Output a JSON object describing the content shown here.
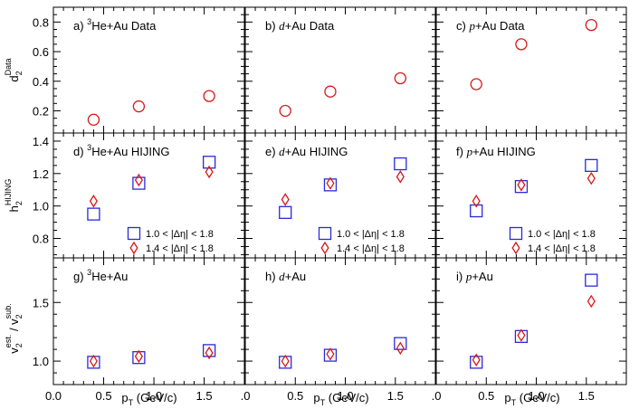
{
  "figure": {
    "xlabel_main": "p",
    "xlabel_sub": "T",
    "xlabel_unit": " (GeV/c)",
    "legend": {
      "blue_label": "1.0 < |Δη| < 1.8",
      "red_label": "1.4 < |Δη| < 1.8"
    },
    "xticks": {
      "first_panel": [
        "0.0",
        "0.5",
        "1.0",
        "1.5"
      ],
      "other_panels": [
        ".0",
        "0.5",
        "1.0",
        "1.5"
      ]
    },
    "rows": [
      {
        "ylabel_main": "d",
        "ylabel_sub": "2",
        "ylabel_sup": "Data",
        "yticks": [
          "0.2",
          "0.4",
          "0.6",
          "0.8"
        ]
      },
      {
        "ylabel_main": "h",
        "ylabel_sub": "2",
        "ylabel_sup": "HIJING",
        "yticks": [
          "0.8",
          "1.0",
          "1.2",
          "1.4"
        ]
      },
      {
        "ylabel_main": "v",
        "ylabel_sub": "2",
        "ylabel_sup": "est.",
        "ylabel_mid": " / v",
        "ylabel_sub2": "2",
        "ylabel_sup2": "sub.",
        "yticks": [
          "1.0",
          "1.5"
        ]
      }
    ]
  },
  "colors": {
    "blue": "#2a2ad8",
    "red": "#d81818"
  },
  "chart_data": [
    {
      "type": "scatter",
      "title": "a) 3He+Au Data",
      "label": {
        "letter": "a)",
        "sup": "3",
        "rest": "He+Au Data"
      },
      "xlim": [
        0,
        1.9
      ],
      "ylim": [
        0.05,
        0.9
      ],
      "series": [
        {
          "name": "Data",
          "marker": "circle",
          "color": "red",
          "x": [
            0.4,
            0.85,
            1.55
          ],
          "y": [
            0.14,
            0.23,
            0.3
          ]
        }
      ]
    },
    {
      "type": "scatter",
      "title": "b) d+Au Data",
      "label": {
        "letter": "b)",
        "ital": "d",
        "rest": "+Au Data"
      },
      "xlim": [
        0,
        1.9
      ],
      "ylim": [
        0.05,
        0.9
      ],
      "series": [
        {
          "name": "Data",
          "marker": "circle",
          "color": "red",
          "x": [
            0.4,
            0.85,
            1.55
          ],
          "y": [
            0.2,
            0.33,
            0.42
          ]
        }
      ]
    },
    {
      "type": "scatter",
      "title": "c) p+Au Data",
      "label": {
        "letter": "c)",
        "ital": "p",
        "rest": "+Au Data"
      },
      "xlim": [
        0,
        1.9
      ],
      "ylim": [
        0.05,
        0.9
      ],
      "series": [
        {
          "name": "Data",
          "marker": "circle",
          "color": "red",
          "x": [
            0.4,
            0.85,
            1.55
          ],
          "y": [
            0.38,
            0.65,
            0.78
          ]
        }
      ]
    },
    {
      "type": "scatter",
      "title": "d) 3He+Au HIJING",
      "label": {
        "letter": "d)",
        "sup": "3",
        "rest": "He+Au HIJING"
      },
      "xlim": [
        0,
        1.9
      ],
      "ylim": [
        0.68,
        1.45
      ],
      "legend": true,
      "series": [
        {
          "name": "1.0 < |Δη| < 1.8",
          "marker": "square",
          "color": "blue",
          "x": [
            0.4,
            0.85,
            1.55
          ],
          "y": [
            0.95,
            1.14,
            1.27
          ]
        },
        {
          "name": "1.4 < |Δη| < 1.8",
          "marker": "diamond",
          "color": "red",
          "x": [
            0.4,
            0.85,
            1.55
          ],
          "y": [
            1.03,
            1.16,
            1.21
          ]
        }
      ]
    },
    {
      "type": "scatter",
      "title": "e) d+Au HIJING",
      "label": {
        "letter": "e)",
        "ital": "d",
        "rest": "+Au HIJING"
      },
      "xlim": [
        0,
        1.9
      ],
      "ylim": [
        0.68,
        1.45
      ],
      "legend": true,
      "series": [
        {
          "name": "1.0 < |Δη| < 1.8",
          "marker": "square",
          "color": "blue",
          "x": [
            0.4,
            0.85,
            1.55
          ],
          "y": [
            0.96,
            1.13,
            1.26
          ]
        },
        {
          "name": "1.4 < |Δη| < 1.8",
          "marker": "diamond",
          "color": "red",
          "x": [
            0.4,
            0.85,
            1.55
          ],
          "y": [
            1.04,
            1.14,
            1.18
          ]
        }
      ]
    },
    {
      "type": "scatter",
      "title": "f) p+Au HIJING",
      "label": {
        "letter": "f)",
        "ital": "p",
        "rest": "+Au HIJING"
      },
      "xlim": [
        0,
        1.9
      ],
      "ylim": [
        0.68,
        1.45
      ],
      "legend": true,
      "series": [
        {
          "name": "1.0 < |Δη| < 1.8",
          "marker": "square",
          "color": "blue",
          "x": [
            0.4,
            0.85,
            1.55
          ],
          "y": [
            0.97,
            1.12,
            1.25
          ]
        },
        {
          "name": "1.4 < |Δη| < 1.8",
          "marker": "diamond",
          "color": "red",
          "x": [
            0.4,
            0.85,
            1.55
          ],
          "y": [
            1.03,
            1.13,
            1.17
          ]
        }
      ]
    },
    {
      "type": "scatter",
      "title": "g) 3He+Au",
      "label": {
        "letter": "g)",
        "sup": "3",
        "rest": "He+Au"
      },
      "xlim": [
        0,
        1.9
      ],
      "ylim": [
        0.8,
        1.88
      ],
      "series": [
        {
          "name": "1.0 < |Δη| < 1.8",
          "marker": "square",
          "color": "blue",
          "x": [
            0.4,
            0.85,
            1.55
          ],
          "y": [
            0.99,
            1.03,
            1.09
          ]
        },
        {
          "name": "1.4 < |Δη| < 1.8",
          "marker": "diamond",
          "color": "red",
          "x": [
            0.4,
            0.85,
            1.55
          ],
          "y": [
            1.0,
            1.04,
            1.07
          ]
        }
      ]
    },
    {
      "type": "scatter",
      "title": "h) d+Au",
      "label": {
        "letter": "h)",
        "ital": "d",
        "rest": "+Au"
      },
      "xlim": [
        0,
        1.9
      ],
      "ylim": [
        0.8,
        1.88
      ],
      "series": [
        {
          "name": "1.0 < |Δη| < 1.8",
          "marker": "square",
          "color": "blue",
          "x": [
            0.4,
            0.85,
            1.55
          ],
          "y": [
            0.99,
            1.05,
            1.15
          ]
        },
        {
          "name": "1.4 < |Δη| < 1.8",
          "marker": "diamond",
          "color": "red",
          "x": [
            0.4,
            0.85,
            1.55
          ],
          "y": [
            1.0,
            1.06,
            1.11
          ]
        }
      ]
    },
    {
      "type": "scatter",
      "title": "i) p+Au",
      "label": {
        "letter": "i)",
        "ital": "p",
        "rest": "+Au"
      },
      "xlim": [
        0,
        1.9
      ],
      "ylim": [
        0.8,
        1.88
      ],
      "series": [
        {
          "name": "1.0 < |Δη| < 1.8",
          "marker": "square",
          "color": "blue",
          "x": [
            0.4,
            0.85,
            1.55
          ],
          "y": [
            0.99,
            1.21,
            1.69
          ]
        },
        {
          "name": "1.4 < |Δη| < 1.8",
          "marker": "diamond",
          "color": "red",
          "x": [
            0.4,
            0.85,
            1.55
          ],
          "y": [
            1.01,
            1.22,
            1.51
          ]
        }
      ]
    }
  ]
}
